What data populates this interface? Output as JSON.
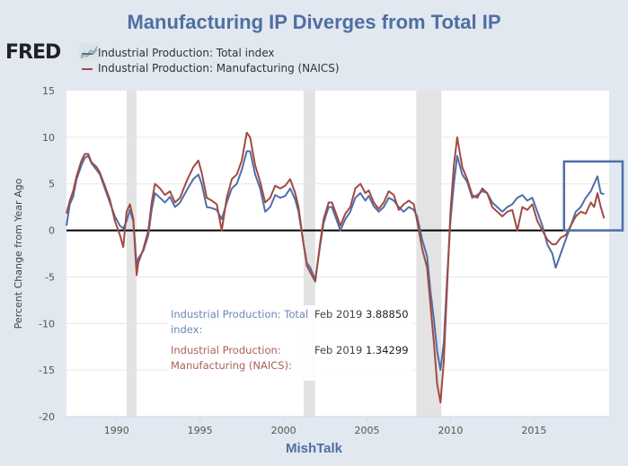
{
  "chart_data": {
    "type": "line",
    "title": "Manufacturing IP Diverges from Total IP",
    "xlabel": "",
    "ylabel": "Percent Change from Year Ago",
    "source_label": "MishTalk",
    "xlim": [
      1987.0,
      2019.5
    ],
    "ylim": [
      -20,
      15
    ],
    "x_ticks": [
      1990,
      1995,
      2000,
      2005,
      2010,
      2015
    ],
    "y_ticks": [
      15,
      10,
      5,
      0,
      -5,
      -10,
      -15,
      -20
    ],
    "grid": true,
    "zero_line": true,
    "recessions": [
      [
        1990.6,
        1991.2
      ],
      [
        2001.2,
        2001.9
      ],
      [
        2007.95,
        2009.45
      ]
    ],
    "highlight_box": {
      "x_range": [
        2016.8,
        2019.6
      ],
      "y_range": [
        0,
        7.4
      ]
    },
    "legend": {
      "position": "top-left",
      "entries": [
        "Industrial Production: Total index",
        "Industrial Production: Manufacturing (NAICS)"
      ]
    },
    "series": [
      {
        "name": "Industrial Production: Total index",
        "color": "#4e6fa8",
        "points": [
          [
            1987.0,
            0.5
          ],
          [
            1987.2,
            2.8
          ],
          [
            1987.4,
            3.6
          ],
          [
            1987.6,
            5.5
          ],
          [
            1987.9,
            7.0
          ],
          [
            1988.1,
            7.8
          ],
          [
            1988.3,
            8.0
          ],
          [
            1988.5,
            7.2
          ],
          [
            1988.8,
            6.5
          ],
          [
            1989.0,
            6.0
          ],
          [
            1989.3,
            4.5
          ],
          [
            1989.6,
            3.0
          ],
          [
            1989.9,
            1.5
          ],
          [
            1990.2,
            0.5
          ],
          [
            1990.4,
            0.2
          ],
          [
            1990.6,
            1.0
          ],
          [
            1990.8,
            2.2
          ],
          [
            1991.0,
            1.0
          ],
          [
            1991.2,
            -3.8
          ],
          [
            1991.3,
            -3.0
          ],
          [
            1991.6,
            -2.2
          ],
          [
            1991.9,
            -0.5
          ],
          [
            1992.1,
            2.2
          ],
          [
            1992.3,
            4.0
          ],
          [
            1992.6,
            3.5
          ],
          [
            1992.9,
            3.0
          ],
          [
            1993.2,
            3.6
          ],
          [
            1993.5,
            2.5
          ],
          [
            1993.8,
            3.0
          ],
          [
            1994.2,
            4.3
          ],
          [
            1994.6,
            5.5
          ],
          [
            1994.9,
            6.0
          ],
          [
            1995.1,
            5.0
          ],
          [
            1995.4,
            2.5
          ],
          [
            1995.7,
            2.4
          ],
          [
            1996.0,
            2.2
          ],
          [
            1996.3,
            1.2
          ],
          [
            1996.6,
            3.0
          ],
          [
            1996.9,
            4.5
          ],
          [
            1997.2,
            5.0
          ],
          [
            1997.5,
            6.5
          ],
          [
            1997.8,
            8.5
          ],
          [
            1998.0,
            8.5
          ],
          [
            1998.3,
            6.0
          ],
          [
            1998.6,
            4.5
          ],
          [
            1998.9,
            2.0
          ],
          [
            1999.2,
            2.5
          ],
          [
            1999.5,
            3.8
          ],
          [
            1999.8,
            3.5
          ],
          [
            2000.1,
            3.7
          ],
          [
            2000.4,
            4.5
          ],
          [
            2000.7,
            3.3
          ],
          [
            2000.9,
            2.0
          ],
          [
            2001.2,
            -1.5
          ],
          [
            2001.4,
            -3.5
          ],
          [
            2001.6,
            -4.0
          ],
          [
            2001.9,
            -5.3
          ],
          [
            2002.2,
            -1.5
          ],
          [
            2002.4,
            0.8
          ],
          [
            2002.7,
            2.5
          ],
          [
            2002.9,
            2.5
          ],
          [
            2003.2,
            1.0
          ],
          [
            2003.4,
            0.0
          ],
          [
            2003.7,
            1.2
          ],
          [
            2004.0,
            2.0
          ],
          [
            2004.3,
            3.5
          ],
          [
            2004.6,
            4.0
          ],
          [
            2004.9,
            3.2
          ],
          [
            2005.1,
            3.7
          ],
          [
            2005.4,
            2.6
          ],
          [
            2005.7,
            2.0
          ],
          [
            2006.0,
            2.5
          ],
          [
            2006.3,
            3.5
          ],
          [
            2006.6,
            3.2
          ],
          [
            2006.9,
            2.5
          ],
          [
            2007.2,
            2.0
          ],
          [
            2007.5,
            2.5
          ],
          [
            2007.8,
            2.2
          ],
          [
            2008.0,
            1.5
          ],
          [
            2008.3,
            -1.0
          ],
          [
            2008.6,
            -2.8
          ],
          [
            2008.8,
            -6.5
          ],
          [
            2009.0,
            -9.5
          ],
          [
            2009.2,
            -13.0
          ],
          [
            2009.4,
            -15.0
          ],
          [
            2009.6,
            -12.0
          ],
          [
            2009.8,
            -5.0
          ],
          [
            2010.0,
            1.0
          ],
          [
            2010.2,
            5.0
          ],
          [
            2010.4,
            8.0
          ],
          [
            2010.7,
            6.0
          ],
          [
            2011.0,
            5.2
          ],
          [
            2011.3,
            3.5
          ],
          [
            2011.6,
            3.8
          ],
          [
            2011.9,
            4.2
          ],
          [
            2012.2,
            4.0
          ],
          [
            2012.5,
            3.0
          ],
          [
            2012.8,
            2.5
          ],
          [
            2013.1,
            2.0
          ],
          [
            2013.4,
            2.5
          ],
          [
            2013.7,
            2.8
          ],
          [
            2014.0,
            3.5
          ],
          [
            2014.3,
            3.8
          ],
          [
            2014.6,
            3.2
          ],
          [
            2014.9,
            3.5
          ],
          [
            2015.2,
            2.0
          ],
          [
            2015.5,
            0.5
          ],
          [
            2015.8,
            -1.5
          ],
          [
            2016.1,
            -2.5
          ],
          [
            2016.3,
            -4.0
          ],
          [
            2016.6,
            -2.5
          ],
          [
            2016.9,
            -1.0
          ],
          [
            2017.2,
            0.5
          ],
          [
            2017.5,
            2.0
          ],
          [
            2017.8,
            2.5
          ],
          [
            2018.1,
            3.5
          ],
          [
            2018.4,
            4.2
          ],
          [
            2018.6,
            5.0
          ],
          [
            2018.8,
            5.8
          ],
          [
            2019.0,
            4.0
          ],
          [
            2019.2,
            3.9
          ]
        ]
      },
      {
        "name": "Industrial Production: Manufacturing (NAICS)",
        "color": "#a14b42",
        "points": [
          [
            1987.0,
            1.8
          ],
          [
            1987.2,
            3.2
          ],
          [
            1987.4,
            4.2
          ],
          [
            1987.6,
            5.8
          ],
          [
            1987.9,
            7.5
          ],
          [
            1988.1,
            8.2
          ],
          [
            1988.3,
            8.2
          ],
          [
            1988.5,
            7.3
          ],
          [
            1988.8,
            6.8
          ],
          [
            1989.0,
            6.2
          ],
          [
            1989.3,
            4.8
          ],
          [
            1989.6,
            3.3
          ],
          [
            1989.9,
            1.0
          ],
          [
            1990.2,
            -0.5
          ],
          [
            1990.4,
            -1.8
          ],
          [
            1990.6,
            2.0
          ],
          [
            1990.8,
            2.8
          ],
          [
            1991.0,
            1.3
          ],
          [
            1991.2,
            -4.8
          ],
          [
            1991.3,
            -3.5
          ],
          [
            1991.6,
            -2.0
          ],
          [
            1991.9,
            0.0
          ],
          [
            1992.1,
            3.0
          ],
          [
            1992.3,
            5.0
          ],
          [
            1992.6,
            4.5
          ],
          [
            1992.9,
            3.8
          ],
          [
            1993.2,
            4.2
          ],
          [
            1993.5,
            3.0
          ],
          [
            1993.8,
            3.5
          ],
          [
            1994.2,
            5.3
          ],
          [
            1994.6,
            6.8
          ],
          [
            1994.9,
            7.5
          ],
          [
            1995.1,
            6.2
          ],
          [
            1995.4,
            3.5
          ],
          [
            1995.7,
            3.2
          ],
          [
            1996.0,
            2.8
          ],
          [
            1996.3,
            0.0
          ],
          [
            1996.6,
            3.5
          ],
          [
            1996.9,
            5.5
          ],
          [
            1997.2,
            6.0
          ],
          [
            1997.5,
            7.5
          ],
          [
            1997.8,
            10.5
          ],
          [
            1998.0,
            10.0
          ],
          [
            1998.3,
            7.0
          ],
          [
            1998.6,
            5.2
          ],
          [
            1998.9,
            3.0
          ],
          [
            1999.2,
            3.5
          ],
          [
            1999.5,
            4.8
          ],
          [
            1999.8,
            4.5
          ],
          [
            2000.1,
            4.8
          ],
          [
            2000.4,
            5.5
          ],
          [
            2000.7,
            4.0
          ],
          [
            2000.9,
            2.5
          ],
          [
            2001.2,
            -1.5
          ],
          [
            2001.4,
            -3.8
          ],
          [
            2001.6,
            -4.5
          ],
          [
            2001.9,
            -5.5
          ],
          [
            2002.2,
            -1.2
          ],
          [
            2002.4,
            1.2
          ],
          [
            2002.7,
            3.0
          ],
          [
            2002.9,
            3.0
          ],
          [
            2003.2,
            1.5
          ],
          [
            2003.4,
            0.5
          ],
          [
            2003.7,
            1.8
          ],
          [
            2004.0,
            2.5
          ],
          [
            2004.3,
            4.5
          ],
          [
            2004.6,
            5.0
          ],
          [
            2004.9,
            4.0
          ],
          [
            2005.1,
            4.3
          ],
          [
            2005.4,
            3.0
          ],
          [
            2005.7,
            2.3
          ],
          [
            2006.0,
            3.0
          ],
          [
            2006.3,
            4.2
          ],
          [
            2006.6,
            3.8
          ],
          [
            2006.9,
            2.2
          ],
          [
            2007.2,
            2.8
          ],
          [
            2007.5,
            3.2
          ],
          [
            2007.8,
            2.8
          ],
          [
            2008.0,
            1.0
          ],
          [
            2008.3,
            -2.0
          ],
          [
            2008.6,
            -4.0
          ],
          [
            2008.8,
            -8.0
          ],
          [
            2009.0,
            -12.0
          ],
          [
            2009.2,
            -16.5
          ],
          [
            2009.4,
            -18.5
          ],
          [
            2009.6,
            -14.0
          ],
          [
            2009.8,
            -6.0
          ],
          [
            2010.0,
            2.0
          ],
          [
            2010.2,
            7.0
          ],
          [
            2010.4,
            10.0
          ],
          [
            2010.7,
            6.8
          ],
          [
            2011.0,
            5.5
          ],
          [
            2011.3,
            3.8
          ],
          [
            2011.6,
            3.5
          ],
          [
            2011.9,
            4.5
          ],
          [
            2012.2,
            4.0
          ],
          [
            2012.5,
            2.5
          ],
          [
            2012.8,
            2.0
          ],
          [
            2013.1,
            1.5
          ],
          [
            2013.4,
            2.0
          ],
          [
            2013.7,
            2.2
          ],
          [
            2014.0,
            0.0
          ],
          [
            2014.3,
            2.5
          ],
          [
            2014.6,
            2.2
          ],
          [
            2014.9,
            2.8
          ],
          [
            2015.2,
            1.0
          ],
          [
            2015.5,
            0.0
          ],
          [
            2015.8,
            -1.0
          ],
          [
            2016.1,
            -1.5
          ],
          [
            2016.3,
            -1.5
          ],
          [
            2016.6,
            -0.8
          ],
          [
            2016.9,
            -0.5
          ],
          [
            2017.2,
            0.5
          ],
          [
            2017.5,
            1.5
          ],
          [
            2017.8,
            2.0
          ],
          [
            2018.1,
            1.8
          ],
          [
            2018.4,
            3.0
          ],
          [
            2018.6,
            2.5
          ],
          [
            2018.8,
            4.0
          ],
          [
            2019.0,
            2.5
          ],
          [
            2019.2,
            1.3
          ]
        ]
      }
    ]
  },
  "header": {
    "brand": "FRED",
    "brand_icon": "line-chart-icon"
  },
  "tooltip": {
    "rows": [
      {
        "name": "Industrial Production: Total index:",
        "date": "Feb 2019",
        "value": "3.88850",
        "color": "#6b86b8"
      },
      {
        "name": "Industrial Production: Manufacturing (NAICS):",
        "date": "Feb 2019",
        "value": "1.34299",
        "color": "#a9625a"
      }
    ]
  },
  "colors": {
    "background": "#e1e8f0",
    "plot_background": "#ffffff",
    "recession": "#e3e3e3",
    "title": "#4f6fa3",
    "highlight_box": "#4e6fa8"
  }
}
